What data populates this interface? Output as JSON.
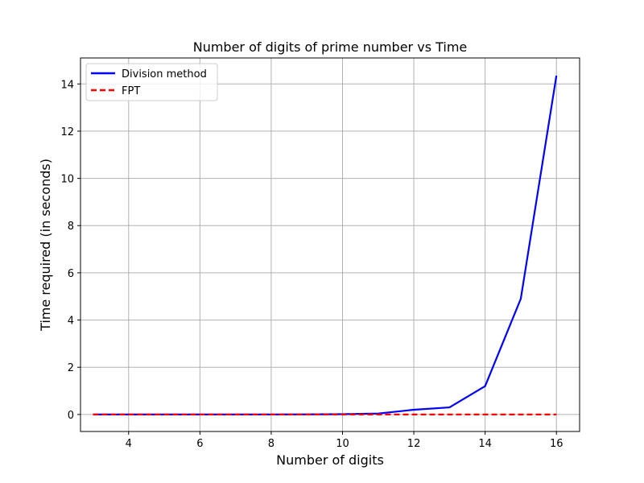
{
  "chart_data": {
    "type": "line",
    "title": "Number of digits of prime number vs Time",
    "xlabel": "Number of digits",
    "ylabel": "Time required (in seconds)",
    "x": [
      3,
      4,
      5,
      6,
      7,
      8,
      9,
      10,
      11,
      12,
      13,
      14,
      15,
      16
    ],
    "xlim": [
      2.65,
      16.65
    ],
    "ylim": [
      -0.72,
      15.1
    ],
    "xticks": [
      4,
      6,
      8,
      10,
      12,
      14,
      16
    ],
    "yticks": [
      0,
      2,
      4,
      6,
      8,
      10,
      12,
      14
    ],
    "grid": true,
    "legend": "upper left",
    "series": [
      {
        "name": "Division method",
        "color": "#0000ff",
        "linestyle": "solid",
        "values": [
          0.0,
          0.0,
          0.0,
          0.0,
          0.0,
          0.001,
          0.004,
          0.012,
          0.04,
          0.2,
          0.3,
          1.2,
          4.9,
          14.35
        ]
      },
      {
        "name": "FPT",
        "color": "#ff0000",
        "linestyle": "dashed",
        "values": [
          0.0,
          0.0,
          0.0,
          0.0,
          0.0,
          0.0,
          0.0,
          0.0,
          0.0,
          0.0,
          0.0,
          0.0,
          0.0,
          0.0
        ]
      }
    ]
  }
}
